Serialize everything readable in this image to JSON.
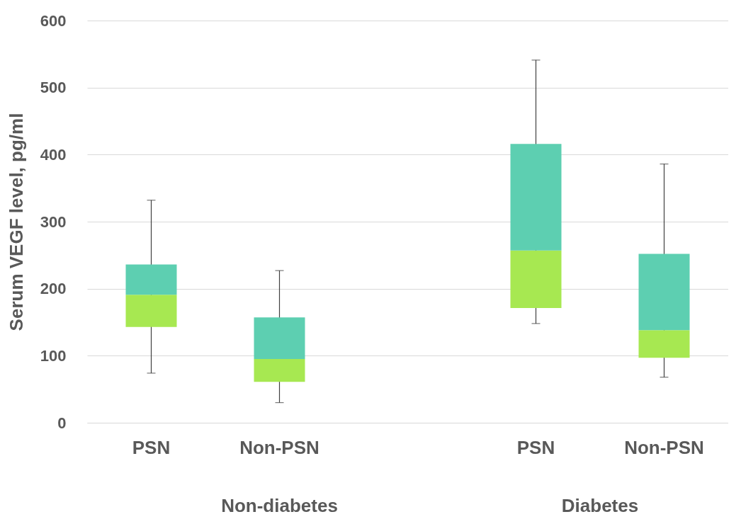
{
  "chart_data": {
    "type": "box",
    "ylabel": "Serum VEGF level, pg/ml",
    "categories": [
      "PSN",
      "Non-PSN",
      null,
      "PSN",
      "Non-PSN"
    ],
    "annotations": [
      "Non-diabetes",
      "Diabetes"
    ],
    "series": [
      {
        "color": "#5dcfb1",
        "colors": [
          "#a7e851",
          "#a7e851",
          null,
          "#a7e851",
          "#a7e851"
        ],
        "boxes": [
          {
            "low": 74,
            "q1": 143,
            "median": 191,
            "q3": 236,
            "high": 332
          },
          {
            "low": 30,
            "q1": 61,
            "median": 95,
            "q3": 157,
            "high": 227
          },
          null,
          {
            "low": 148,
            "q1": 171,
            "median": 257,
            "q3": 416,
            "high": 541
          },
          {
            "low": 68,
            "q1": 97,
            "median": 138,
            "q3": 252,
            "high": 386
          }
        ]
      }
    ],
    "ylim": [
      0,
      600
    ],
    "yticks": [
      0,
      100,
      200,
      300,
      400,
      500,
      600
    ],
    "grid": "y"
  }
}
